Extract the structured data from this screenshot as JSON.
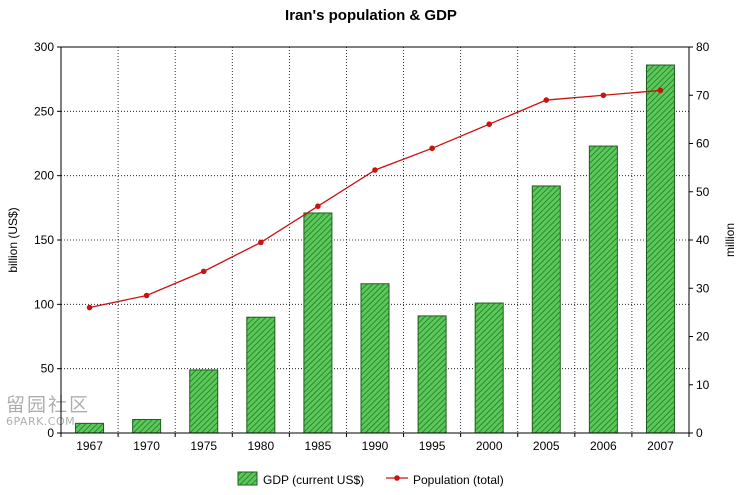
{
  "chart_data": {
    "type": "bar",
    "title": "Iran's population & GDP",
    "categories": [
      "1967",
      "1970",
      "1975",
      "1980",
      "1985",
      "1990",
      "1995",
      "2000",
      "2005",
      "2006",
      "2007"
    ],
    "series": [
      {
        "name": "GDP (current US$)",
        "type": "bar",
        "axis": "left",
        "color": "#2e9e2e",
        "values": [
          7.5,
          10.5,
          49,
          90,
          171,
          116,
          91,
          101,
          192,
          223,
          286
        ]
      },
      {
        "name": "Population (total)",
        "type": "line",
        "axis": "right",
        "color": "#cc1111",
        "values": [
          26,
          28.5,
          33.5,
          39.5,
          47,
          54.5,
          59,
          64,
          69,
          70,
          71
        ]
      }
    ],
    "left_axis": {
      "label": "billion (US$)",
      "min": 0,
      "max": 300,
      "ticks": [
        0,
        50,
        100,
        150,
        200,
        250,
        300
      ]
    },
    "right_axis": {
      "label": "million",
      "min": 0,
      "max": 80,
      "ticks": [
        0,
        10,
        20,
        30,
        40,
        50,
        60,
        70,
        80
      ]
    },
    "grid": true,
    "legend_position": "bottom"
  },
  "watermark": {
    "line1": "留园社区",
    "line2": "6PARK.COM"
  }
}
